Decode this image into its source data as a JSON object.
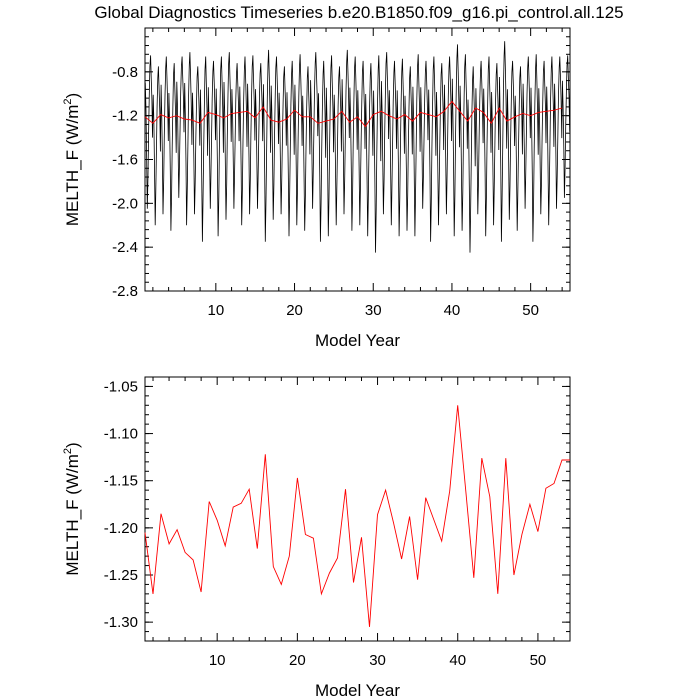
{
  "title": "Global Diagnostics Timeseries b.e20.B1850.f09_g16.pi_control.all.125",
  "colors": {
    "monthly": "#000000",
    "annual": "#ff0000",
    "axes": "#000000"
  },
  "chart_data": [
    {
      "type": "line",
      "xlabel": "Model Year",
      "ylabel": "MELTH_F (W/m2)",
      "xlim": [
        1,
        55
      ],
      "ylim": [
        -2.8,
        -0.4
      ],
      "xticks": [
        10,
        20,
        30,
        40,
        50
      ],
      "yticks": [
        -2.8,
        -2.4,
        -2.0,
        -1.6,
        -1.2,
        -0.8
      ],
      "ytick_labels": [
        "-2.8",
        "-2.4",
        "-2.0",
        "-1.6",
        "-1.2",
        "-0.8"
      ],
      "series": [
        {
          "style": "monthly",
          "x_start": 1.0417,
          "x_step": 0.08333,
          "seasonal_cycle": [
            -0.95,
            -1.2,
            -1.6,
            -2.1,
            -1.8,
            -1.4,
            -1.05,
            -0.8,
            -0.7,
            -0.9,
            -1.1,
            -1.45
          ],
          "annual_peak": [
            -0.65,
            -0.75,
            -0.66,
            -0.72,
            -0.66,
            -0.62,
            -0.75,
            -0.66,
            -0.7,
            -0.66,
            -0.62,
            -0.72,
            -0.66,
            -0.65,
            -0.72,
            -0.6,
            -0.66,
            -0.75,
            -0.7,
            -0.64,
            -0.75,
            -0.62,
            -0.7,
            -0.65,
            -0.75,
            -0.6,
            -0.66,
            -0.7,
            -0.72,
            -0.65,
            -0.62,
            -0.7,
            -0.68,
            -0.75,
            -0.64,
            -0.7,
            -0.66,
            -0.72,
            -0.66,
            -0.55,
            -0.64,
            -0.75,
            -0.7,
            -0.66,
            -0.72,
            -0.52,
            -0.7,
            -0.75,
            -0.66,
            -0.64,
            -0.7,
            -0.66,
            -0.66,
            -0.65
          ],
          "annual_trough": [
            -2.05,
            -2.2,
            -2.1,
            -2.25,
            -1.95,
            -2.2,
            -2.1,
            -2.35,
            -2.05,
            -2.3,
            -2.15,
            -2.05,
            -2.2,
            -2.1,
            -2.05,
            -2.35,
            -2.15,
            -2.1,
            -2.3,
            -2.2,
            -2.25,
            -2.05,
            -2.35,
            -2.3,
            -2.2,
            -2.1,
            -2.25,
            -2.2,
            -2.3,
            -2.45,
            -2.1,
            -2.2,
            -2.3,
            -2.25,
            -2.3,
            -2.05,
            -2.35,
            -2.2,
            -2.1,
            -2.3,
            -2.25,
            -2.45,
            -2.1,
            -2.3,
            -2.2,
            -2.35,
            -2.15,
            -2.25,
            -2.05,
            -2.35,
            -2.1,
            -2.2,
            -2.05,
            -1.95
          ]
        },
        {
          "style": "annual",
          "x": [
            1,
            2,
            3,
            4,
            5,
            6,
            7,
            8,
            9,
            10,
            11,
            12,
            13,
            14,
            15,
            16,
            17,
            18,
            19,
            20,
            21,
            22,
            23,
            24,
            25,
            26,
            27,
            28,
            29,
            30,
            31,
            32,
            33,
            34,
            35,
            36,
            37,
            38,
            39,
            40,
            41,
            42,
            43,
            44,
            45,
            46,
            47,
            48,
            49,
            50,
            51,
            52,
            53,
            54
          ],
          "values": [
            -1.21,
            -1.27,
            -1.19,
            -1.22,
            -1.2,
            -1.23,
            -1.24,
            -1.27,
            -1.17,
            -1.19,
            -1.22,
            -1.18,
            -1.17,
            -1.16,
            -1.22,
            -1.12,
            -1.24,
            -1.26,
            -1.23,
            -1.15,
            -1.21,
            -1.21,
            -1.27,
            -1.25,
            -1.23,
            -1.16,
            -1.26,
            -1.21,
            -1.3,
            -1.19,
            -1.16,
            -1.2,
            -1.23,
            -1.19,
            -1.25,
            -1.17,
            -1.19,
            -1.21,
            -1.16,
            -1.07,
            -1.16,
            -1.25,
            -1.13,
            -1.17,
            -1.27,
            -1.13,
            -1.25,
            -1.21,
            -1.18,
            -1.2,
            -1.17,
            -1.16,
            -1.15,
            -1.13
          ]
        }
      ]
    },
    {
      "type": "line",
      "xlabel": "Model Year",
      "ylabel": "MELTH_F (W/m2)",
      "xlim": [
        1,
        54
      ],
      "ylim": [
        -1.32,
        -1.04
      ],
      "xticks": [
        10,
        20,
        30,
        40,
        50
      ],
      "yticks": [
        -1.3,
        -1.25,
        -1.2,
        -1.15,
        -1.1,
        -1.05
      ],
      "ytick_labels": [
        "-1.30",
        "-1.25",
        "-1.20",
        "-1.15",
        "-1.10",
        "-1.05"
      ],
      "series": [
        {
          "style": "annual",
          "x": [
            1,
            2,
            3,
            4,
            5,
            6,
            7,
            8,
            9,
            10,
            11,
            12,
            13,
            14,
            15,
            16,
            17,
            18,
            19,
            20,
            21,
            22,
            23,
            24,
            25,
            26,
            27,
            28,
            29,
            30,
            31,
            32,
            33,
            34,
            35,
            36,
            37,
            38,
            39,
            40,
            41,
            42,
            43,
            44,
            45,
            46,
            47,
            48,
            49,
            50,
            51,
            52,
            53,
            54
          ],
          "values": [
            -1.205,
            -1.27,
            -1.185,
            -1.217,
            -1.202,
            -1.226,
            -1.234,
            -1.268,
            -1.172,
            -1.192,
            -1.219,
            -1.178,
            -1.174,
            -1.159,
            -1.222,
            -1.122,
            -1.241,
            -1.26,
            -1.23,
            -1.147,
            -1.207,
            -1.211,
            -1.27,
            -1.248,
            -1.232,
            -1.159,
            -1.258,
            -1.21,
            -1.305,
            -1.186,
            -1.16,
            -1.195,
            -1.233,
            -1.188,
            -1.255,
            -1.168,
            -1.191,
            -1.214,
            -1.161,
            -1.07,
            -1.161,
            -1.253,
            -1.126,
            -1.167,
            -1.27,
            -1.126,
            -1.25,
            -1.207,
            -1.175,
            -1.204,
            -1.158,
            -1.153,
            -1.128,
            -1.128
          ]
        }
      ]
    }
  ]
}
